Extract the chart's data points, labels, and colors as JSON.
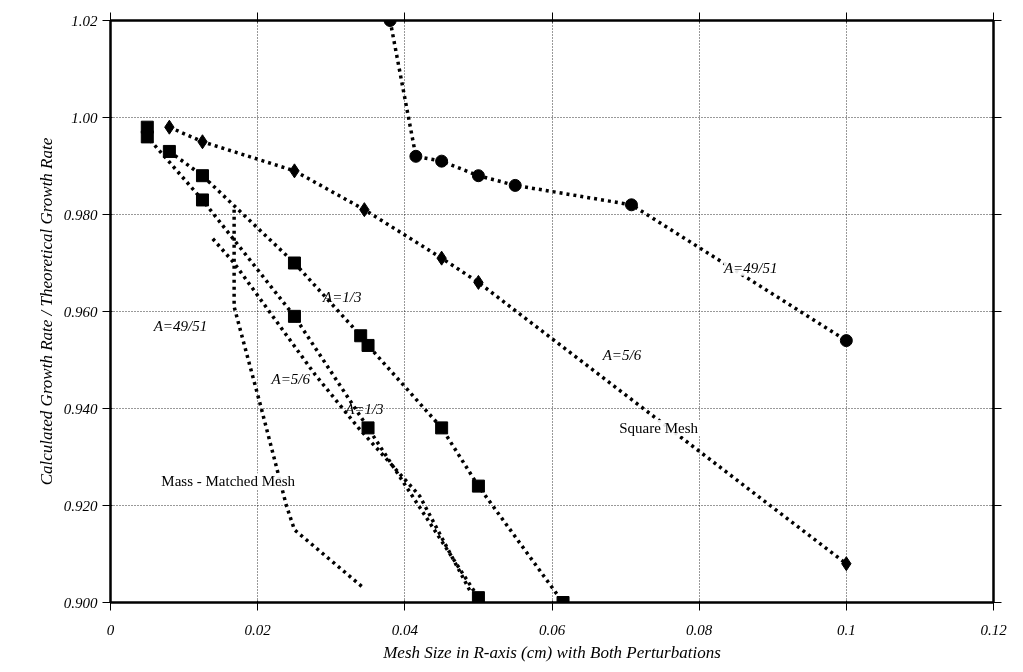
{
  "chart_data": {
    "type": "line",
    "xlabel": "Mesh Size in R-axis (cm) with Both Perturbations",
    "ylabel": "Calculated Growth Rate / Theoretical Growth Rate",
    "xlim": [
      0,
      0.12
    ],
    "ylim": [
      0.9,
      1.02
    ],
    "xticks": [
      0,
      0.02,
      0.04,
      0.06,
      0.08,
      0.1,
      0.12
    ],
    "yticks": [
      {
        "value": 0.9,
        "label": "0.900"
      },
      {
        "value": 0.92,
        "label": "0.920"
      },
      {
        "value": 0.94,
        "label": "0.940"
      },
      {
        "value": 0.96,
        "label": "0.960"
      },
      {
        "value": 0.98,
        "label": "0.980"
      },
      {
        "value": 1.0,
        "label": "1.00"
      },
      1.02
    ],
    "grid": true,
    "line_style": "dotted",
    "series": [
      {
        "color": "#000000",
        "marker": "circle",
        "x": [
          0.038,
          0.0415,
          0.045,
          0.05,
          0.055,
          0.0708,
          0.1
        ],
        "values": [
          1.02,
          0.992,
          0.991,
          0.988,
          0.986,
          0.982,
          0.954
        ]
      },
      {
        "color": "#000000",
        "marker": "diamond",
        "x": [
          0.008,
          0.0125,
          0.025,
          0.0345,
          0.045,
          0.05,
          0.1
        ],
        "values": [
          0.998,
          0.995,
          0.989,
          0.981,
          0.971,
          0.966,
          0.908
        ]
      },
      {
        "color": "#000000",
        "marker": "square",
        "x": [
          0.008,
          0.0125,
          0.025,
          0.034,
          0.035,
          0.045,
          0.05,
          0.0615
        ],
        "values": [
          0.993,
          0.988,
          0.97,
          0.955,
          0.953,
          0.936,
          0.924,
          0.9
        ]
      },
      {
        "color": "#000000",
        "marker": "square",
        "x": [
          0.005,
          0.005,
          0.0125,
          0.025,
          0.035,
          0.05
        ],
        "values": [
          0.998,
          0.996,
          0.983,
          0.959,
          0.936,
          0.901
        ]
      },
      {
        "color": "#000000",
        "marker": "none",
        "x": [
          0.0139,
          0.0168,
          0.0278,
          0.0337,
          0.042,
          0.049
        ],
        "values": [
          0.975,
          0.97,
          0.947,
          0.936,
          0.922,
          0.902
        ]
      },
      {
        "color": "#000000",
        "marker": "none",
        "x": [
          0.0168,
          0.0168,
          0.0175,
          0.0205,
          0.0239,
          0.025,
          0.0344
        ],
        "values": [
          0.981,
          0.961,
          0.957,
          0.94,
          0.92,
          0.915,
          0.903
        ]
      }
    ],
    "annotations": [
      "A=49/51",
      "A=5/6",
      "A=1/3",
      "A=49/51",
      "A=5/6",
      "A=1/3",
      "Square   Mesh",
      "Mass - Matched   Mesh"
    ]
  }
}
